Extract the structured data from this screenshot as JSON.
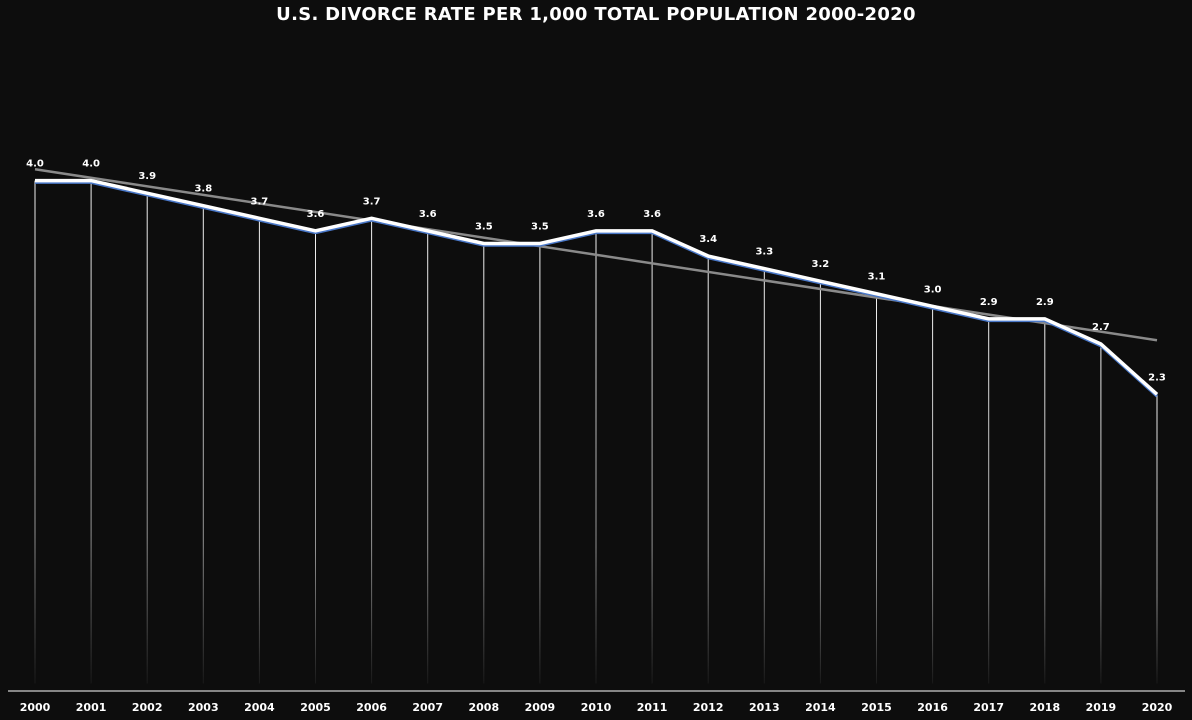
{
  "chart_data": {
    "type": "line",
    "title": "U.S. DIVORCE RATE PER 1,000 TOTAL POPULATION 2000-2020",
    "xlabel": "",
    "ylabel": "",
    "categories": [
      "2000",
      "2001",
      "2002",
      "2003",
      "2004",
      "2005",
      "2006",
      "2007",
      "2008",
      "2009",
      "2010",
      "2011",
      "2012",
      "2013",
      "2014",
      "2015",
      "2016",
      "2017",
      "2018",
      "2019",
      "2020"
    ],
    "series": [
      {
        "values": [
          4.0,
          4.0,
          3.9,
          3.8,
          3.7,
          3.6,
          3.7,
          3.6,
          3.5,
          3.5,
          3.6,
          3.6,
          3.4,
          3.3,
          3.2,
          3.1,
          3.0,
          2.9,
          2.9,
          2.7,
          2.3
        ],
        "labels": [
          "4.0",
          "4.0",
          "3.9",
          "3.8",
          "3.7",
          "3.6",
          "3.7",
          "3.6",
          "3.5",
          "3.5",
          "3.6",
          "3.6",
          "3.4",
          "3.3",
          "3.2",
          "3.1",
          "3.0",
          "2.9",
          "2.9",
          "2.7",
          "2.3"
        ],
        "color": "#ffffff",
        "shadow_color": "#4a78c8"
      }
    ],
    "trendline": {
      "type": "linear",
      "start": 4.09,
      "end": 2.73,
      "color": "#8a8a8a"
    },
    "ylim": [
      0,
      4.8
    ],
    "grid": "vertical drop lines",
    "legend": "none",
    "colors": {
      "background": "#0d0d0d",
      "text": "#ffffff",
      "axis": "#ffffff"
    }
  }
}
